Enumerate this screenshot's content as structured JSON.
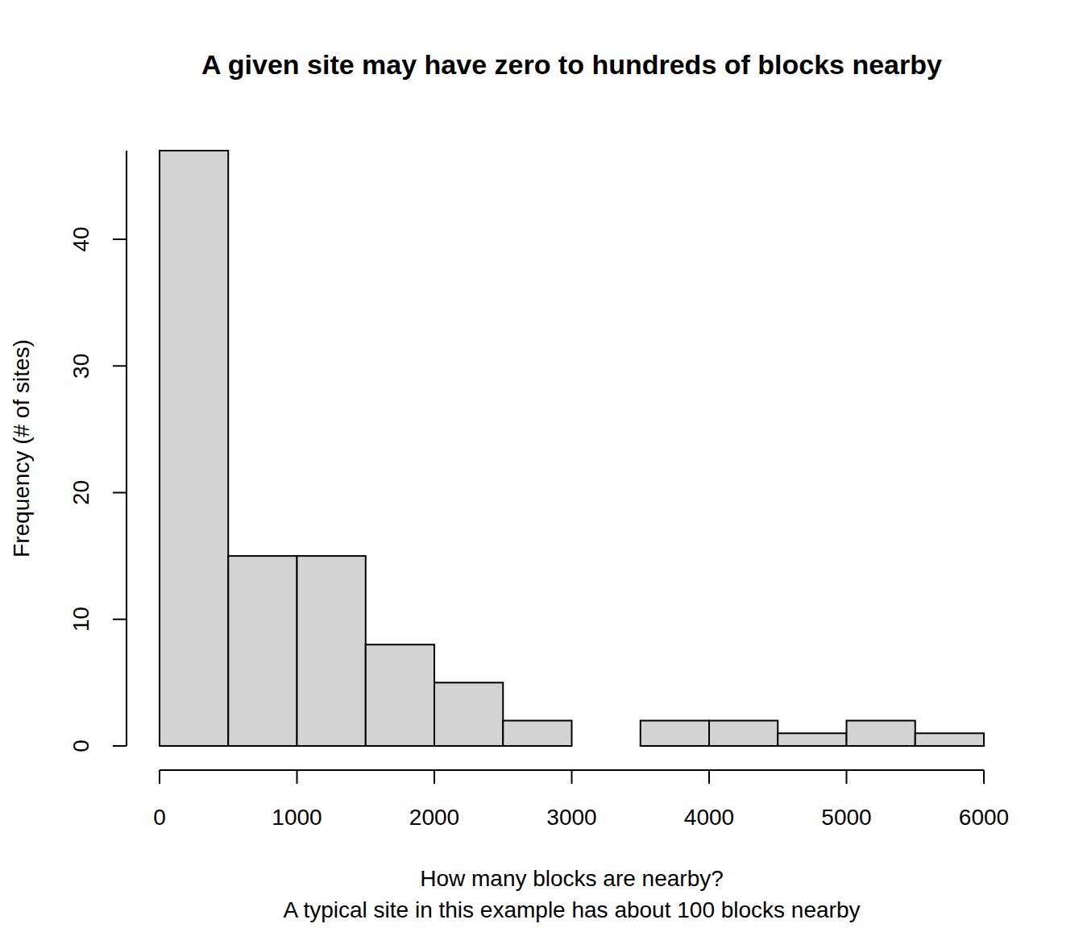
{
  "chart_data": {
    "type": "histogram",
    "title": "A given site may have zero to hundreds of blocks nearby",
    "x_label": [
      "How many blocks are nearby?",
      "A typical site in this example has about 100 blocks nearby"
    ],
    "y_label": "Frequency (# of sites)",
    "bins": [
      0,
      500,
      1000,
      1500,
      2000,
      2500,
      3000,
      3500,
      4000,
      4500,
      5000,
      5500,
      6000
    ],
    "values": [
      47,
      15,
      15,
      8,
      5,
      2,
      0,
      2,
      2,
      1,
      2,
      1
    ],
    "color": "#d3d3d3",
    "xlim": [
      0,
      6000
    ],
    "xticks": [
      0,
      1000,
      2000,
      3000,
      4000,
      5000,
      6000
    ],
    "ylim": [
      0,
      47
    ],
    "yticks": [
      0,
      10,
      20,
      30,
      40
    ],
    "grid": false
  }
}
